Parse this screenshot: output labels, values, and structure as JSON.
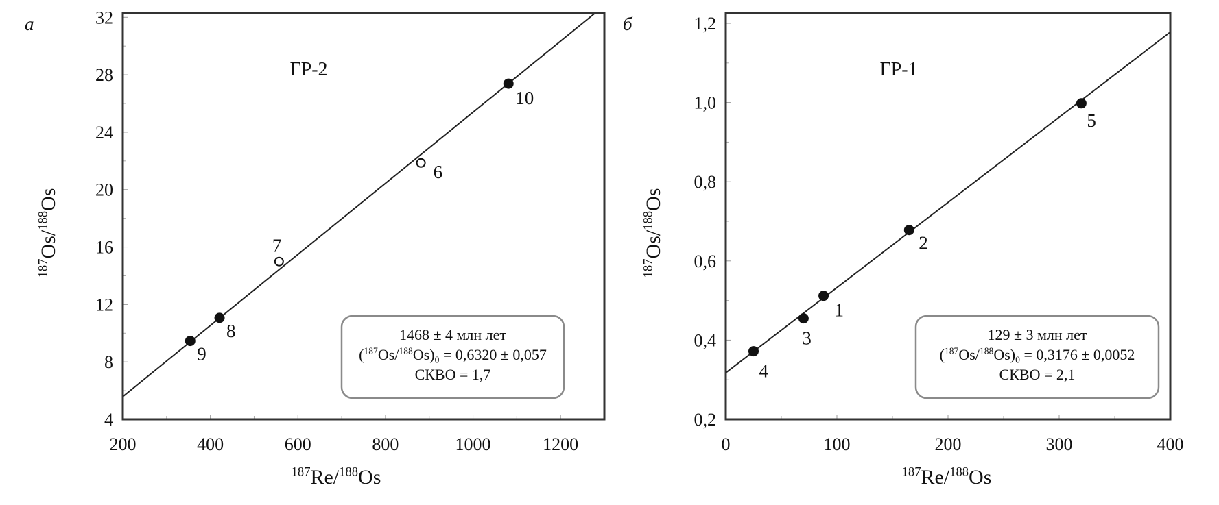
{
  "chart_data": [
    {
      "type": "scatter",
      "panel_label": "а",
      "title": "ГР-2",
      "xlabel": [
        [
          "187",
          "sup"
        ],
        [
          "Re/",
          ""
        ],
        [
          "188",
          "sup"
        ],
        [
          "Os",
          ""
        ]
      ],
      "ylabel": [
        [
          "187",
          "sup"
        ],
        [
          "Os/",
          ""
        ],
        [
          "188",
          "sup"
        ],
        [
          "Os",
          ""
        ]
      ],
      "xlim": [
        200,
        1300
      ],
      "ylim": [
        4,
        32.3
      ],
      "xticks": [
        200,
        400,
        600,
        800,
        1000,
        1200
      ],
      "xtick_labels": [
        "200",
        "400",
        "600",
        "800",
        "1000",
        "1200"
      ],
      "xminor": [
        300,
        500,
        700,
        900,
        1100,
        1300
      ],
      "yticks": [
        4,
        8,
        12,
        16,
        20,
        24,
        28,
        32
      ],
      "ytick_labels": [
        "4",
        "8",
        "12",
        "16",
        "20",
        "24",
        "28",
        "32"
      ],
      "yminor": [
        6,
        10,
        14,
        18,
        22,
        26,
        30
      ],
      "points": [
        {
          "label": "9",
          "x": 354,
          "y": 9.46,
          "filled": true,
          "lx": 10,
          "ly": 28
        },
        {
          "label": "8",
          "x": 421,
          "y": 11.07,
          "filled": true,
          "lx": 10,
          "ly": 28
        },
        {
          "label": "7",
          "x": 557,
          "y": 14.99,
          "filled": false,
          "lx": -10,
          "ly": -14
        },
        {
          "label": "6",
          "x": 881,
          "y": 21.86,
          "filled": false,
          "lx": 18,
          "ly": 22
        },
        {
          "label": "10",
          "x": 1081,
          "y": 27.38,
          "filled": true,
          "lx": 10,
          "ly": 30
        }
      ],
      "isochron": {
        "slope": 0.02476,
        "intercept": 0.632
      },
      "info_box": [
        [
          [
            "1468 ± 4 млн лет",
            ""
          ]
        ],
        [
          [
            "(",
            ""
          ],
          [
            "187",
            "sup"
          ],
          [
            "Os/",
            ""
          ],
          [
            "188",
            "sup"
          ],
          [
            "Os)",
            ""
          ],
          [
            "0",
            "sub"
          ],
          [
            " = 0,6320 ± 0,057",
            ""
          ]
        ],
        [
          [
            "СКВО = 1,7",
            ""
          ]
        ]
      ]
    },
    {
      "type": "scatter",
      "panel_label": "б",
      "title": "ГР-1",
      "xlabel": [
        [
          "187",
          "sup"
        ],
        [
          "Re/",
          ""
        ],
        [
          "188",
          "sup"
        ],
        [
          "Os",
          ""
        ]
      ],
      "ylabel": [
        [
          "187",
          "sup"
        ],
        [
          "Os/",
          ""
        ],
        [
          "188",
          "sup"
        ],
        [
          "Os",
          ""
        ]
      ],
      "xlim": [
        0,
        400
      ],
      "ylim": [
        0.2,
        1.226
      ],
      "xticks": [
        0,
        100,
        200,
        300,
        400
      ],
      "xtick_labels": [
        "0",
        "100",
        "200",
        "300",
        "400"
      ],
      "xminor": [
        50,
        150,
        250,
        350
      ],
      "yticks": [
        0.2,
        0.4,
        0.6,
        0.8,
        1.0,
        1.2
      ],
      "ytick_labels": [
        "0,2",
        "0,4",
        "0,6",
        "0,8",
        "1,0",
        "1,2"
      ],
      "yminor": [
        0.3,
        0.5,
        0.7,
        0.9,
        1.1
      ],
      "points": [
        {
          "label": "4",
          "x": 25,
          "y": 0.372,
          "filled": true,
          "lx": 8,
          "ly": 38
        },
        {
          "label": "3",
          "x": 70,
          "y": 0.455,
          "filled": true,
          "lx": -2,
          "ly": 38
        },
        {
          "label": "1",
          "x": 88,
          "y": 0.512,
          "filled": true,
          "lx": 16,
          "ly": 30
        },
        {
          "label": "2",
          "x": 165,
          "y": 0.678,
          "filled": true,
          "lx": 14,
          "ly": 28
        },
        {
          "label": "5",
          "x": 320,
          "y": 0.998,
          "filled": true,
          "lx": 8,
          "ly": 34
        }
      ],
      "isochron": {
        "slope": 0.002151,
        "intercept": 0.3176
      },
      "info_box": [
        [
          [
            "129 ± 3 млн лет",
            ""
          ]
        ],
        [
          [
            "(",
            ""
          ],
          [
            "187",
            "sup"
          ],
          [
            "Os/",
            ""
          ],
          [
            "188",
            "sup"
          ],
          [
            "Os)",
            ""
          ],
          [
            "0",
            "sub"
          ],
          [
            " = 0,3176 ± 0,0052",
            ""
          ]
        ],
        [
          [
            "СКВО = 2,1",
            ""
          ]
        ]
      ]
    }
  ]
}
